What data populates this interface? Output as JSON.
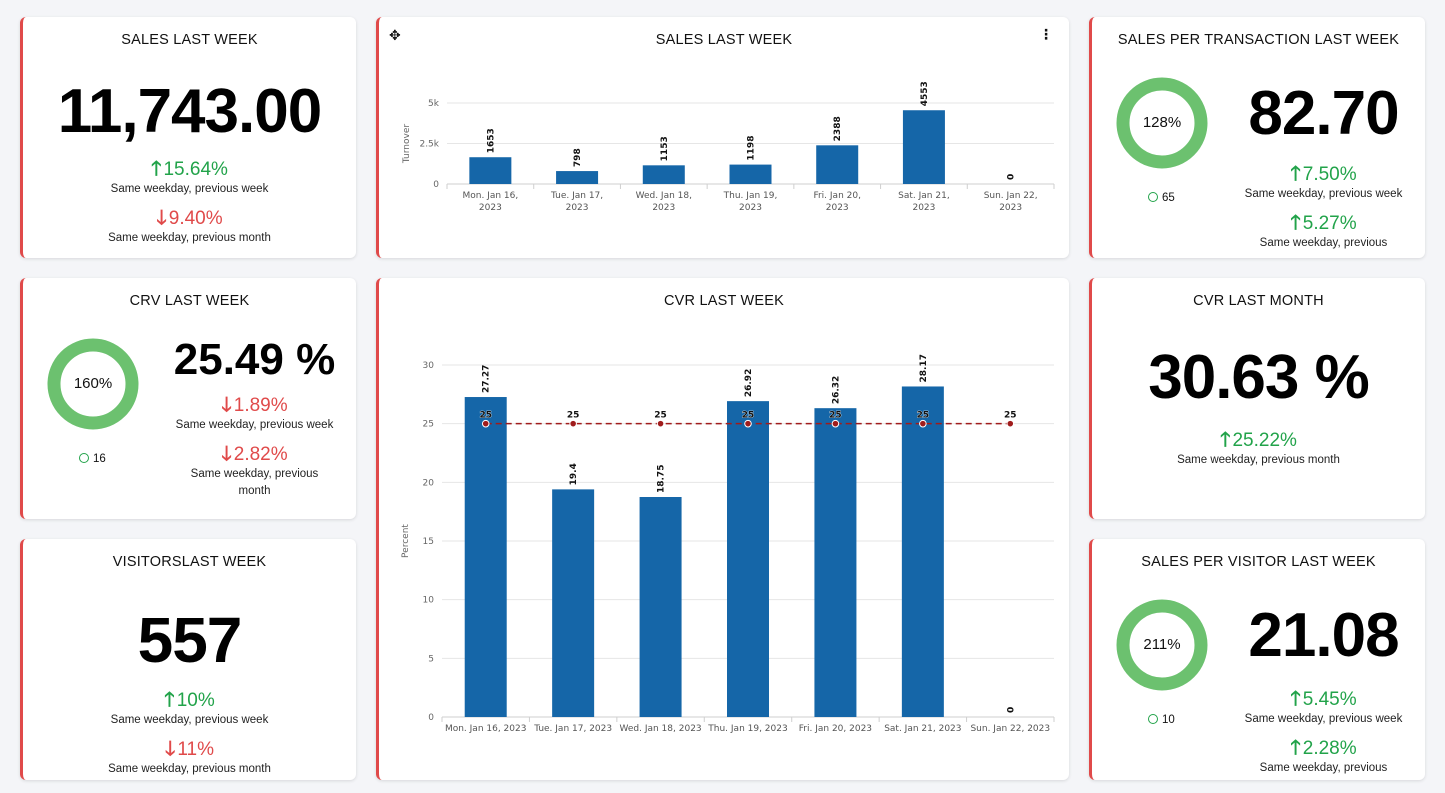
{
  "colors": {
    "bar": "#1566a8",
    "up": "#22a34a",
    "down": "#e04a4a",
    "ring": "#6cc16f",
    "target": "#a01c1c",
    "card_border": "#e04a4a"
  },
  "sales_last_week": {
    "title": "SALES LAST WEEK",
    "value": "11,743.00",
    "delta1": "15.64%",
    "label1": "Same weekday, previous week",
    "delta2": "9.40%",
    "label2": "Same weekday, previous month"
  },
  "sales_chart": {
    "title": "SALES LAST WEEK",
    "move_icon": "✥",
    "menu_icon": "⋮",
    "chart_data": {
      "type": "bar",
      "title": "SALES LAST WEEK",
      "ylabel": "Turnover",
      "ylim": [
        0,
        5000
      ],
      "yticks": [
        "0",
        "2.5k",
        "5k"
      ],
      "categories": [
        "Mon. Jan 16, 2023",
        "Tue. Jan 17, 2023",
        "Wed. Jan 18, 2023",
        "Thu. Jan 19, 2023",
        "Fri. Jan 20, 2023",
        "Sat. Jan 21, 2023",
        "Sun. Jan 22, 2023"
      ],
      "values": [
        1653,
        798,
        1153,
        1198,
        2388,
        4553,
        0
      ],
      "grid": true
    }
  },
  "spt_last_week": {
    "title": "SALES PER TRANSACTION LAST WEEK",
    "ring_label": "128%",
    "ring_percent": 128,
    "count": "65",
    "value": "82.70",
    "delta1": "7.50%",
    "label1": "Same weekday, previous week",
    "delta2": "5.27%",
    "label2": "Same weekday, previous"
  },
  "crv_last_week": {
    "title": "CRV LAST WEEK",
    "ring_label": "160%",
    "ring_percent": 160,
    "count": "16",
    "value": "25.49 %",
    "delta1": "1.89%",
    "label1": "Same weekday, previous week",
    "delta2": "2.82%",
    "label2a": "Same weekday, previous",
    "label2b": "month"
  },
  "cvr_chart": {
    "title": "CVR LAST WEEK",
    "chart_data": {
      "type": "bar",
      "title": "CVR LAST WEEK",
      "ylabel": "Percent",
      "ylim": [
        0,
        30
      ],
      "yticks": [
        "0",
        "5",
        "10",
        "15",
        "20",
        "25",
        "30"
      ],
      "categories": [
        "Mon. Jan 16, 2023",
        "Tue. Jan 17, 2023",
        "Wed. Jan 18, 2023",
        "Thu. Jan 19, 2023",
        "Fri. Jan 20, 2023",
        "Sat. Jan 21, 2023",
        "Sun. Jan 22, 2023"
      ],
      "values": [
        27.27,
        19.4,
        18.75,
        26.92,
        26.32,
        28.17,
        0
      ],
      "target_values": [
        25,
        25,
        25,
        25,
        25,
        25,
        25
      ],
      "grid": true
    }
  },
  "cvr_last_month": {
    "title": "CVR LAST MONTH",
    "value": "30.63 %",
    "delta1": "25.22%",
    "label1": "Same weekday, previous month"
  },
  "visitors_last_week": {
    "title": "VISITORSLAST WEEK",
    "value": "557",
    "delta1": "10%",
    "label1": "Same weekday, previous week",
    "delta2": "11%",
    "label2": "Same weekday, previous month"
  },
  "spv_last_week": {
    "title": "SALES PER VISITOR LAST WEEK",
    "ring_label": "211%",
    "ring_percent": 211,
    "count": "10",
    "value": "21.08",
    "delta1": "5.45%",
    "label1": "Same weekday, previous week",
    "delta2": "2.28%",
    "label2": "Same weekday, previous"
  },
  "icons": {
    "up": "arrow-up-icon",
    "down": "arrow-down-icon"
  }
}
